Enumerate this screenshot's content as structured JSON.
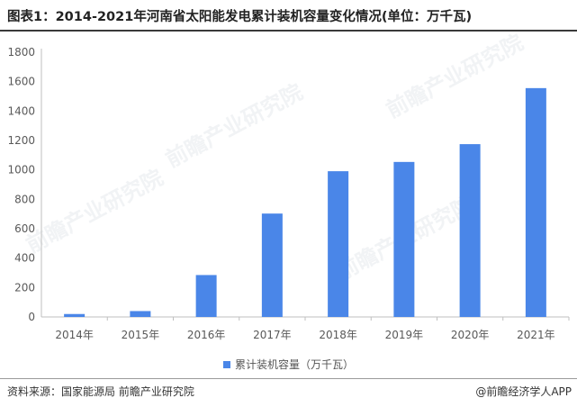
{
  "header": {
    "title": "图表1：2014-2021年河南省太阳能发电累计装机容量变化情况(单位：万千瓦)"
  },
  "footer": {
    "source": "资料来源：国家能源局 前瞻产业研究院",
    "brand": "@前瞻经济学人APP"
  },
  "watermark": {
    "text": "前瞻产业研究院"
  },
  "colors": {
    "bar": "#4a86e8",
    "axis": "#bfbfbf",
    "tick_text": "#595959"
  },
  "chart_data": {
    "type": "bar",
    "title": "",
    "xlabel": "",
    "ylabel": "",
    "categories": [
      "2014年",
      "2015年",
      "2016年",
      "2017年",
      "2018年",
      "2019年",
      "2020年",
      "2021年"
    ],
    "series": [
      {
        "name": "累计装机容量（万千瓦）",
        "values": [
          20,
          40,
          285,
          703,
          991,
          1054,
          1175,
          1556
        ]
      }
    ],
    "ylim": [
      0,
      1800
    ],
    "yticks": [
      0,
      200,
      400,
      600,
      800,
      1000,
      1200,
      1400,
      1600,
      1800
    ],
    "grid": false,
    "legend_position": "bottom"
  }
}
